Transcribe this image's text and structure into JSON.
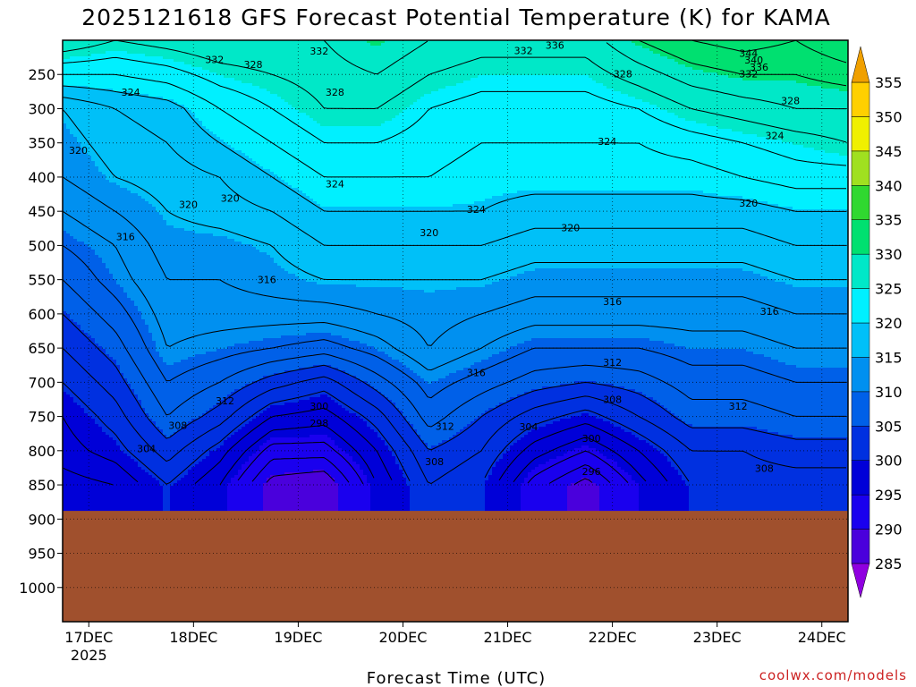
{
  "chart_data": {
    "type": "heatmap",
    "title": "2025121618 GFS Forecast Potential Temperature (K) for KAMA",
    "xlabel": "Forecast Time (UTC)",
    "ylabel": "",
    "credit": "coolwx.com/models",
    "x_ticks": [
      {
        "t": 0.25,
        "label": "17DEC",
        "sub": "2025"
      },
      {
        "t": 1.25,
        "label": "18DEC"
      },
      {
        "t": 2.25,
        "label": "19DEC"
      },
      {
        "t": 3.25,
        "label": "20DEC"
      },
      {
        "t": 4.25,
        "label": "21DEC"
      },
      {
        "t": 5.25,
        "label": "22DEC"
      },
      {
        "t": 6.25,
        "label": "23DEC"
      },
      {
        "t": 7.25,
        "label": "24DEC"
      }
    ],
    "xlim": [
      0,
      7.5
    ],
    "y_ticks": [
      250,
      300,
      350,
      400,
      450,
      500,
      550,
      600,
      650,
      700,
      750,
      800,
      850,
      900,
      950,
      1000
    ],
    "ylim_hPa": [
      200,
      1050
    ],
    "ground_level_hPa": 888,
    "levels": [
      250,
      300,
      350,
      400,
      450,
      500,
      550,
      600,
      650,
      700,
      750,
      800,
      850
    ],
    "contour_interval_K": 2,
    "profiles": [
      {
        "t": 0.0,
        "theta": [
          324,
          318,
          317,
          316,
          314,
          312,
          310,
          308,
          306,
          304,
          302,
          301,
          299
        ]
      },
      {
        "t": 0.5,
        "theta": [
          324,
          320,
          319,
          318,
          316,
          314,
          313,
          311,
          309,
          307,
          305,
          303,
          300
        ]
      },
      {
        "t": 1.0,
        "theta": [
          325,
          321,
          320,
          319,
          318,
          317,
          316,
          315,
          314,
          312,
          310,
          307,
          304
        ]
      },
      {
        "t": 1.5,
        "theta": [
          327,
          324,
          322,
          320,
          319,
          317,
          316,
          315,
          313,
          310,
          307,
          303,
          300
        ]
      },
      {
        "t": 2.0,
        "theta": [
          328,
          326,
          324,
          322,
          320,
          318,
          317,
          315,
          312,
          307,
          302,
          297,
          293
        ]
      },
      {
        "t": 2.5,
        "theta": [
          329,
          328,
          326,
          324,
          322,
          320,
          318,
          315,
          311,
          305,
          301,
          297,
          292
        ]
      },
      {
        "t": 3.0,
        "theta": [
          330,
          328,
          326,
          324,
          322,
          320,
          318,
          316,
          313,
          309,
          305,
          302,
          300
        ]
      },
      {
        "t": 3.5,
        "theta": [
          328,
          326,
          325,
          324,
          322,
          320,
          318,
          317,
          316,
          313,
          311,
          308,
          306
        ]
      },
      {
        "t": 4.0,
        "theta": [
          327,
          325,
          324,
          323,
          322,
          320,
          318,
          316,
          314,
          311,
          308,
          306,
          304
        ]
      },
      {
        "t": 4.5,
        "theta": [
          327,
          325,
          324,
          323,
          321,
          319,
          317,
          315,
          312,
          309,
          305,
          301,
          297
        ]
      },
      {
        "t": 5.0,
        "theta": [
          327,
          325,
          324,
          323,
          321,
          319,
          317,
          315,
          312,
          308,
          303,
          298,
          293
        ]
      },
      {
        "t": 5.5,
        "theta": [
          329,
          326,
          324,
          323,
          321,
          319,
          317,
          315,
          312,
          309,
          306,
          302,
          299
        ]
      },
      {
        "t": 6.0,
        "theta": [
          331,
          328,
          325,
          323,
          321,
          319,
          317,
          315,
          313,
          311,
          309,
          306,
          304
        ]
      },
      {
        "t": 6.5,
        "theta": [
          332,
          329,
          326,
          324,
          321,
          319,
          317,
          315,
          313,
          311,
          309,
          306,
          305
        ]
      },
      {
        "t": 7.0,
        "theta": [
          332,
          330,
          327,
          325,
          322,
          320,
          318,
          316,
          314,
          312,
          310,
          307,
          305
        ]
      },
      {
        "t": 7.5,
        "theta": [
          333,
          330,
          328,
          325,
          322,
          320,
          318,
          316,
          314,
          312,
          310,
          307,
          305
        ]
      }
    ],
    "contour_labels": [
      {
        "text": "332",
        "t": 1.45,
        "p": 228
      },
      {
        "text": "328",
        "t": 1.82,
        "p": 235
      },
      {
        "text": "332",
        "t": 2.45,
        "p": 216
      },
      {
        "text": "332",
        "t": 4.4,
        "p": 215
      },
      {
        "text": "336",
        "t": 4.7,
        "p": 207
      },
      {
        "text": "344",
        "t": 6.55,
        "p": 219
      },
      {
        "text": "340",
        "t": 6.6,
        "p": 229
      },
      {
        "text": "336",
        "t": 6.65,
        "p": 239
      },
      {
        "text": "332",
        "t": 6.55,
        "p": 249
      },
      {
        "text": "328",
        "t": 5.35,
        "p": 249
      },
      {
        "text": "324",
        "t": 0.65,
        "p": 276
      },
      {
        "text": "328",
        "t": 2.6,
        "p": 276
      },
      {
        "text": "328",
        "t": 6.95,
        "p": 288
      },
      {
        "text": "324",
        "t": 6.8,
        "p": 339
      },
      {
        "text": "324",
        "t": 5.2,
        "p": 348
      },
      {
        "text": "320",
        "t": 0.15,
        "p": 361
      },
      {
        "text": "324",
        "t": 2.6,
        "p": 410
      },
      {
        "text": "320",
        "t": 1.6,
        "p": 431
      },
      {
        "text": "320",
        "t": 1.2,
        "p": 440
      },
      {
        "text": "324",
        "t": 3.95,
        "p": 447
      },
      {
        "text": "320",
        "t": 6.55,
        "p": 438
      },
      {
        "text": "320",
        "t": 4.85,
        "p": 474
      },
      {
        "text": "320",
        "t": 3.5,
        "p": 481
      },
      {
        "text": "316",
        "t": 0.6,
        "p": 487
      },
      {
        "text": "316",
        "t": 1.95,
        "p": 550
      },
      {
        "text": "316",
        "t": 5.25,
        "p": 582
      },
      {
        "text": "316",
        "t": 6.75,
        "p": 596
      },
      {
        "text": "312",
        "t": 5.25,
        "p": 671
      },
      {
        "text": "316",
        "t": 3.95,
        "p": 686
      },
      {
        "text": "308",
        "t": 5.25,
        "p": 725
      },
      {
        "text": "312",
        "t": 1.55,
        "p": 727
      },
      {
        "text": "300",
        "t": 2.45,
        "p": 735
      },
      {
        "text": "312",
        "t": 6.45,
        "p": 735
      },
      {
        "text": "298",
        "t": 2.45,
        "p": 760
      },
      {
        "text": "308",
        "t": 1.1,
        "p": 763
      },
      {
        "text": "312",
        "t": 3.65,
        "p": 764
      },
      {
        "text": "304",
        "t": 4.45,
        "p": 765
      },
      {
        "text": "300",
        "t": 5.05,
        "p": 782
      },
      {
        "text": "304",
        "t": 0.8,
        "p": 797
      },
      {
        "text": "308",
        "t": 3.55,
        "p": 816
      },
      {
        "text": "296",
        "t": 5.05,
        "p": 830
      },
      {
        "text": "308",
        "t": 6.7,
        "p": 826
      }
    ],
    "colorbar": {
      "labels": [
        "285",
        "290",
        "295",
        "300",
        "305",
        "310",
        "315",
        "320",
        "325",
        "330",
        "335",
        "340",
        "345",
        "350",
        "355"
      ],
      "bounds": [
        285,
        355
      ],
      "colors": [
        "#7a00b0",
        "#4a00dc",
        "#1a00ee",
        "#0000d8",
        "#0030e0",
        "#0060e8",
        "#0090f0",
        "#00c0f8",
        "#00f0ff",
        "#00e8c8",
        "#00e070",
        "#30d830",
        "#a0e020",
        "#f0f000",
        "#ffd000"
      ],
      "below_color": "#9000e0",
      "above_color": "#f0a000"
    },
    "ground_color": "#a0502d"
  }
}
